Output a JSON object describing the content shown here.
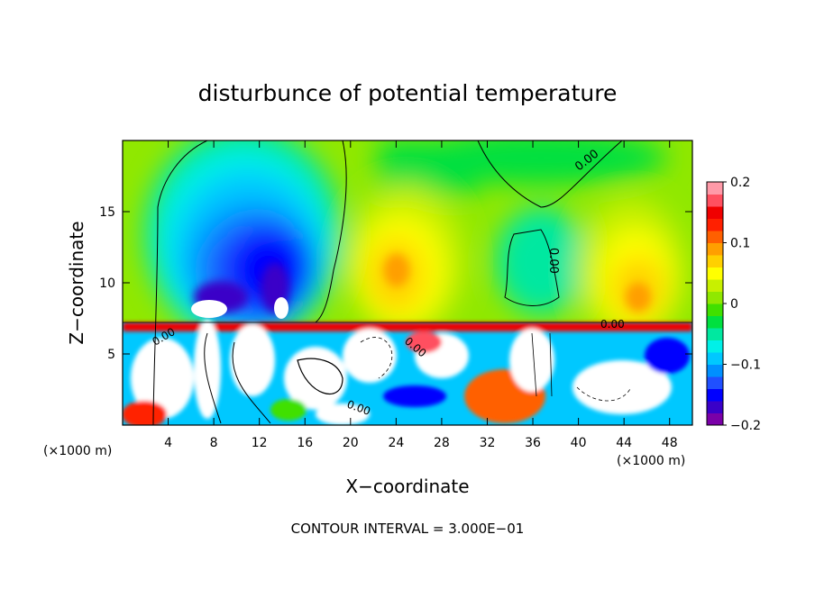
{
  "chart_data": {
    "type": "heatmap",
    "title": "disturbunce of potential temperature",
    "xlabel": "X−coordinate",
    "ylabel": "Z−coordinate",
    "x_unit_left": "(×1000 m)",
    "x_unit_right": "(×1000 m)",
    "footer": "CONTOUR INTERVAL = 3.000E−01",
    "xlim": [
      0,
      50
    ],
    "ylim": [
      0,
      20
    ],
    "x_ticks": [
      "4",
      "8",
      "12",
      "16",
      "20",
      "24",
      "28",
      "32",
      "36",
      "40",
      "44",
      "48"
    ],
    "y_ticks": [
      "5",
      "10",
      "15"
    ],
    "x_tick_values": [
      4,
      8,
      12,
      16,
      20,
      24,
      28,
      32,
      36,
      40,
      44,
      48
    ],
    "y_tick_values": [
      5,
      10,
      15
    ],
    "grid": false,
    "colorbar": {
      "range": [
        -0.2,
        0.2
      ],
      "tick_labels": [
        "0.2",
        "0.1",
        "0",
        "−0.1",
        "−0.2"
      ],
      "tick_values": [
        0.2,
        0.1,
        0,
        -0.1,
        -0.2
      ],
      "colors": [
        "#7a00a8",
        "#3a00c8",
        "#0000ff",
        "#2050ff",
        "#0090ff",
        "#00c8ff",
        "#00f0e8",
        "#00e8a0",
        "#00e040",
        "#40e000",
        "#90e800",
        "#c8f000",
        "#ffff00",
        "#ffd000",
        "#ff9f00",
        "#ff6000",
        "#ff2000",
        "#f00000",
        "#ff5060",
        "#ff9aa8"
      ]
    },
    "contour_labels": [
      "0.00",
      "0.00",
      "0.00",
      "0.00",
      "0.00",
      "0.00"
    ]
  }
}
